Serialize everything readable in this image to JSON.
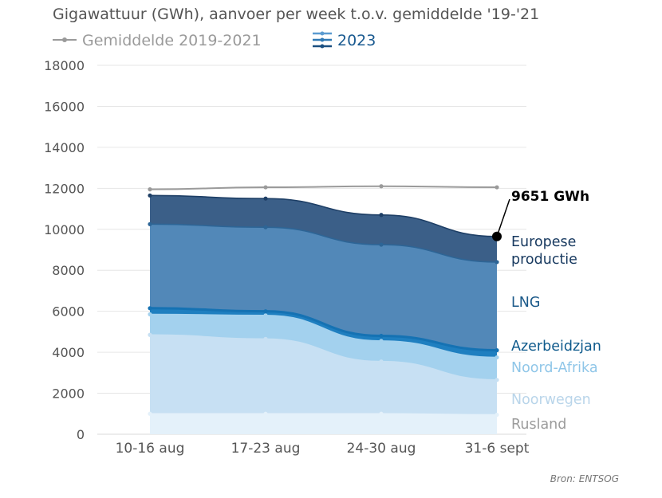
{
  "chart_data": {
    "type": "area",
    "title": "Gigawattuur (GWh), aanvoer per week t.o.v. gemiddelde '19-'21",
    "categories": [
      "10-16 aug",
      "17-23 aug",
      "24-30 aug",
      "31-6 sept"
    ],
    "ylim": [
      0,
      18000
    ],
    "yticks": [
      0,
      2000,
      4000,
      6000,
      8000,
      10000,
      12000,
      14000,
      16000,
      18000
    ],
    "grid": true,
    "legend_position": "top-left",
    "legend": [
      {
        "label": "Gemiddelde 2019-2021",
        "symbol": "line-dot",
        "color": "#9a9a9a"
      },
      {
        "label": "2023",
        "symbol": "stacked-lines",
        "color": "#1a6aa0"
      }
    ],
    "stacked_series": [
      {
        "name": "Rusland",
        "values": [
          1000,
          1000,
          1000,
          950
        ],
        "fill": "#e4f1fa",
        "line": "#e4f1fa",
        "label_color": "#9b9b9b"
      },
      {
        "name": "Noorwegen",
        "values": [
          3850,
          3650,
          2550,
          1700
        ],
        "fill": "#c7e0f3",
        "line": "#c7e0f3",
        "label_color": "#b9d5ea"
      },
      {
        "name": "Noord-Afrika",
        "values": [
          1000,
          1150,
          1000,
          1100
        ],
        "fill": "#a3d1ee",
        "line": "#a3d1ee",
        "label_color": "#8fc6e8"
      },
      {
        "name": "Azerbeidzjan",
        "values": [
          300,
          200,
          250,
          350
        ],
        "fill": "#1f7fc0",
        "line": "#1572b3",
        "label_color": "#0e5a8c"
      },
      {
        "name": "LNG",
        "values": [
          4100,
          4100,
          4450,
          4300
        ],
        "fill": "#5288b8",
        "line": "#2d6596",
        "label_color": "#1c5a8a"
      },
      {
        "name": "Europese productie",
        "values": [
          1400,
          1400,
          1450,
          1250
        ],
        "fill": "#3b5f88",
        "line": "#1e3f66",
        "label_color": "#183a60"
      }
    ],
    "average_series": {
      "name": "Gemiddelde 2019-2021",
      "values": [
        11950,
        12050,
        12100,
        12050
      ],
      "color": "#9a9a9a"
    },
    "annotation": {
      "text": "9651 GWh"
    },
    "source": "Bron: ENTSOG"
  }
}
